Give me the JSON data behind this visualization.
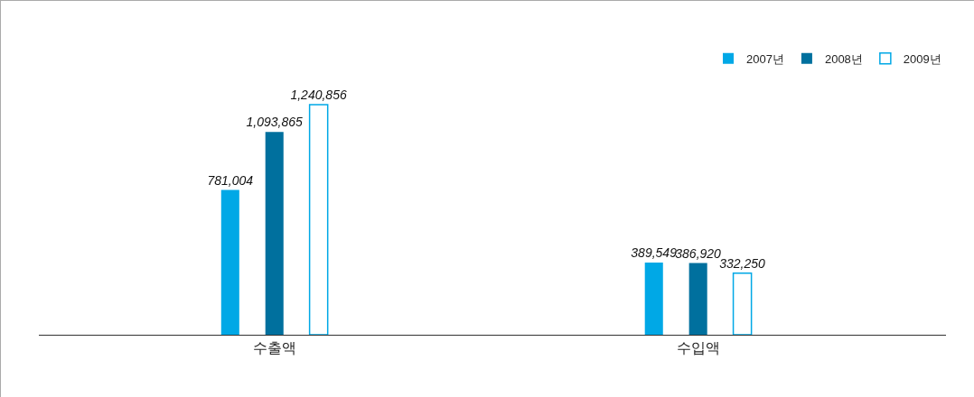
{
  "chart_data": {
    "type": "bar",
    "categories": [
      "수출액",
      "수입액"
    ],
    "series": [
      {
        "name": "2007년",
        "color": "#00a8e6",
        "values": [
          781004,
          389549
        ],
        "value_labels": [
          "781,004",
          "389,549"
        ]
      },
      {
        "name": "2008년",
        "color": "#00709e",
        "values": [
          1093865,
          386920
        ],
        "value_labels": [
          "1,093,865",
          "386,920"
        ]
      },
      {
        "name": "2009년",
        "color": "#ffffff",
        "values": [
          1240856,
          332250
        ],
        "value_labels": [
          "1,240,856",
          "332,250"
        ]
      }
    ],
    "legend": "top right",
    "grid": false
  }
}
